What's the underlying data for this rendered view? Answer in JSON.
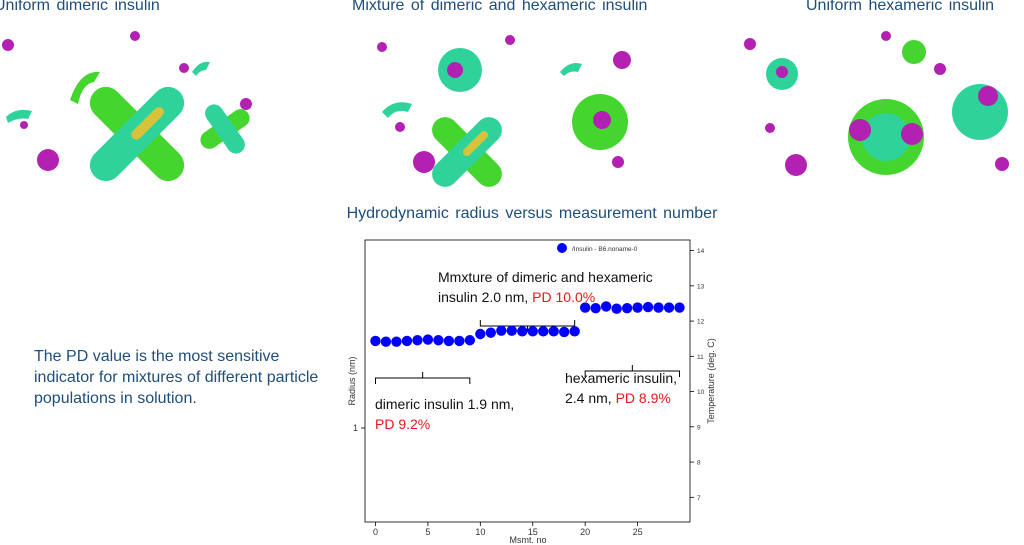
{
  "panels": [
    {
      "title": "Uniform dimeric insulin"
    },
    {
      "title": "Mixture of dimeric and hexameric insulin"
    },
    {
      "title": "Uniform hexameric insulin"
    }
  ],
  "chart_title": "Hydrodynamic radius versus measurement number",
  "side_note": "The PD value is the most sensitive indicator for mixtures of different particle populations in solution.",
  "colors": {
    "title": "#1f4e79",
    "series": "#0000ff",
    "pd": "#e8161c",
    "protein": "#2fd39a",
    "ion": "#b321b3"
  },
  "annotations": {
    "mixture": {
      "line1": "Mmxture of dimeric and hexameric",
      "line2": "insulin 2.0 nm,",
      "pd": "PD 10.0%"
    },
    "dimeric": {
      "line1": "dimeric insulin 1.9 nm,",
      "pd": "PD 9.2%"
    },
    "hexameric": {
      "line1": "hexameric insulin,",
      "line2": "2.4 nm,",
      "pd": "PD 8.9%"
    }
  },
  "chart_data": {
    "type": "scatter",
    "xlabel": "Msmt. no",
    "ylabel": "Radius (nm)",
    "y2label": "Temperature (deg. C)",
    "xlim": [
      -1,
      30
    ],
    "xticks": [
      0,
      5,
      10,
      15,
      20,
      25
    ],
    "ylim_log": [
      0.5,
      4
    ],
    "yticks": [
      {
        "value": 1,
        "label": "1"
      }
    ],
    "y2lim": [
      6.3,
      14.3
    ],
    "y2ticks": [
      7,
      8,
      9,
      10,
      11,
      12,
      13,
      14
    ],
    "legend": {
      "label": "/Insulin - B6.noname-0",
      "placement": "top-right"
    },
    "series": [
      {
        "name": "/Insulin - B6.noname-0",
        "x": [
          0,
          1,
          2,
          3,
          4,
          5,
          6,
          7,
          8,
          9,
          10,
          11,
          12,
          13,
          14,
          15,
          16,
          17,
          18,
          19,
          20,
          21,
          22,
          23,
          24,
          25,
          26,
          27,
          28,
          29
        ],
        "values": [
          1.9,
          1.89,
          1.89,
          1.9,
          1.91,
          1.92,
          1.91,
          1.9,
          1.9,
          1.91,
          2.0,
          2.02,
          2.05,
          2.05,
          2.04,
          2.04,
          2.04,
          2.04,
          2.03,
          2.04,
          2.43,
          2.42,
          2.45,
          2.41,
          2.42,
          2.43,
          2.44,
          2.43,
          2.43,
          2.43
        ]
      }
    ]
  }
}
